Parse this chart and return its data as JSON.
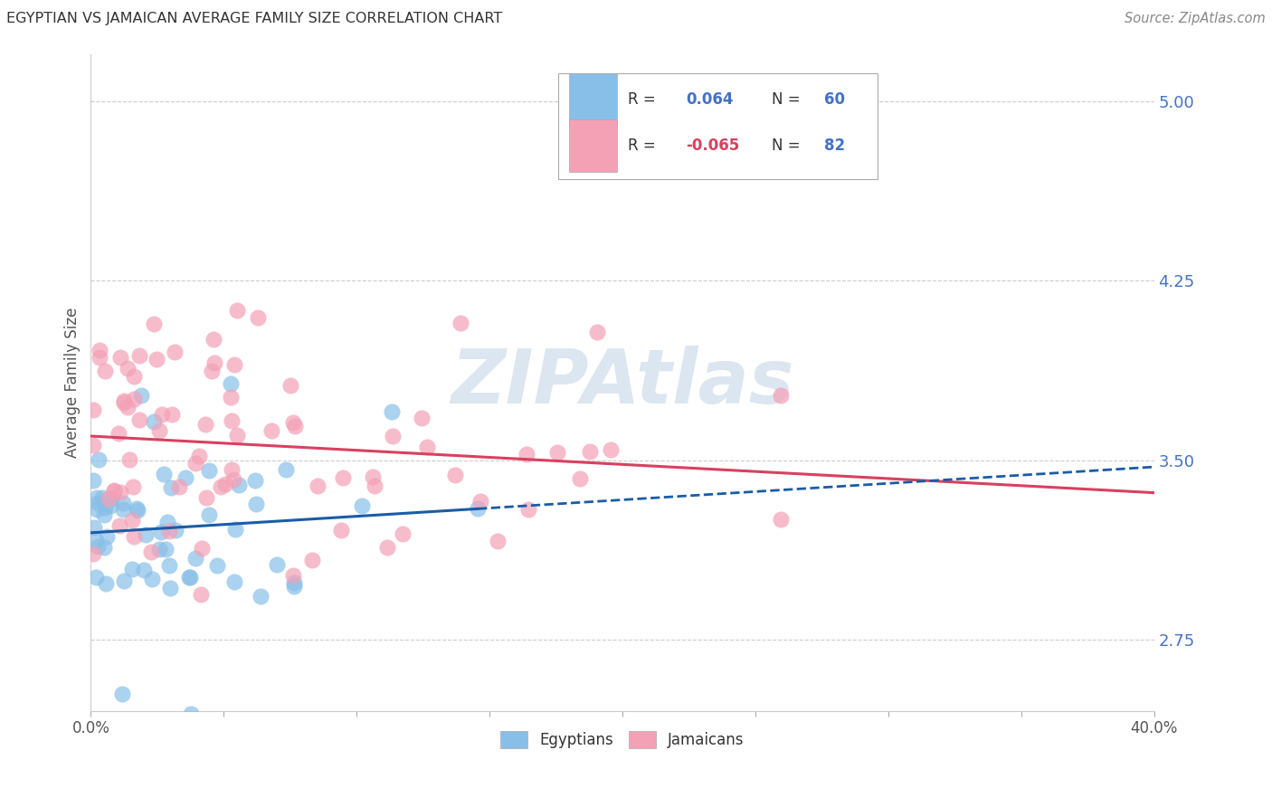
{
  "title": "EGYPTIAN VS JAMAICAN AVERAGE FAMILY SIZE CORRELATION CHART",
  "source": "Source: ZipAtlas.com",
  "ylabel": "Average Family Size",
  "yticks": [
    2.75,
    3.5,
    4.25,
    5.0
  ],
  "xlim": [
    0.0,
    0.4
  ],
  "ylim": [
    2.45,
    5.2
  ],
  "egyptians_R": 0.064,
  "egyptians_N": 60,
  "jamaicans_R": -0.065,
  "jamaicans_N": 82,
  "egyptian_color": "#88bfe8",
  "jamaican_color": "#f4a0b5",
  "egyptian_line_color": "#1a5ca8",
  "jamaican_line_color": "#d94060",
  "background_color": "#ffffff",
  "grid_color": "#cccccc",
  "right_tick_color": "#4472c4",
  "title_color": "#333333",
  "source_color": "#888888",
  "watermark_color": "#dce6f0"
}
